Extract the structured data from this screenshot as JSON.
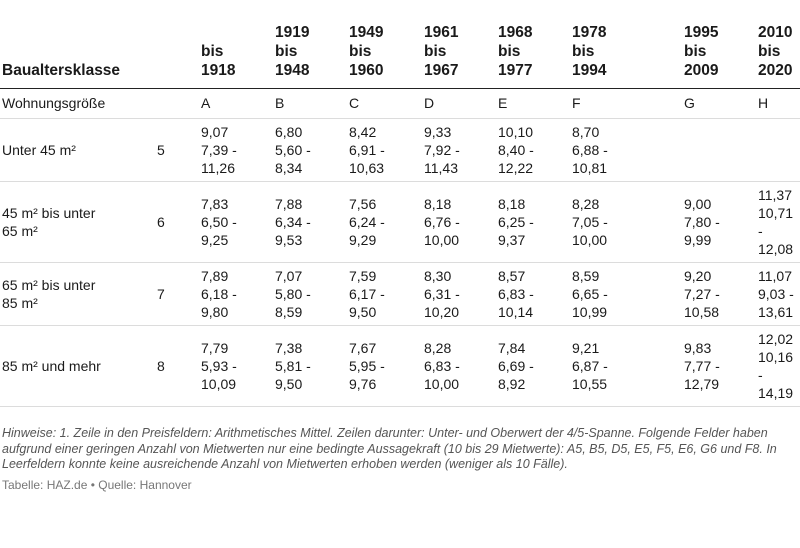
{
  "chart_data": {
    "type": "table",
    "header_label": "Baualtersklasse",
    "columns": [
      {
        "label": "bis\n1918",
        "letter": "A"
      },
      {
        "label": "1919\nbis\n1948",
        "letter": "B"
      },
      {
        "label": "1949\nbis\n1960",
        "letter": "C"
      },
      {
        "label": "1961\nbis\n1967",
        "letter": "D"
      },
      {
        "label": "1968\nbis\n1977",
        "letter": "E"
      },
      {
        "label": "1978\nbis\n1994",
        "letter": "F"
      },
      {
        "label": "1995\nbis\n2009",
        "letter": "G"
      },
      {
        "label": "2010\nbis\n2020",
        "letter": "H"
      }
    ],
    "row_label_header": "Wohnungsgröße",
    "rows": [
      {
        "label": "Unter 45 m²",
        "index": "5",
        "cells": [
          "9,07\n7,39 -\n11,26",
          "6,80\n5,60 -\n8,34",
          "8,42\n6,91 -\n10,63",
          "9,33\n7,92 -\n11,43",
          "10,10\n8,40 -\n12,22",
          "8,70\n6,88 -\n10,81",
          "",
          ""
        ]
      },
      {
        "label": "45 m² bis unter\n65 m²",
        "index": "6",
        "cells": [
          "7,83\n6,50 -\n9,25",
          "7,88\n6,34 -\n9,53",
          "7,56\n6,24 -\n9,29",
          "8,18\n6,76 -\n10,00",
          "8,18\n6,25 -\n9,37",
          "8,28\n7,05 -\n10,00",
          "9,00\n7,80 -\n9,99",
          "11,37\n10,71\n-\n12,08"
        ]
      },
      {
        "label": "65 m² bis unter\n85 m²",
        "index": "7",
        "cells": [
          "7,89\n6,18 -\n9,80",
          "7,07\n5,80 -\n8,59",
          "7,59\n6,17 -\n9,50",
          "8,30\n6,31 -\n10,20",
          "8,57\n6,83 -\n10,14",
          "8,59\n6,65 -\n10,99",
          "9,20\n7,27 -\n10,58",
          "11,07\n9,03 -\n13,61"
        ]
      },
      {
        "label": "85 m² und mehr",
        "index": "8",
        "cells": [
          "7,79\n5,93 -\n10,09",
          "7,38\n5,81 -\n9,50",
          "7,67\n5,95 -\n9,76",
          "8,28\n6,83 -\n10,00",
          "7,84\n6,69 -\n8,92",
          "9,21\n6,87 -\n10,55",
          "9,83\n7,77 -\n12,79",
          "12,02\n10,16\n-\n14,19"
        ]
      }
    ],
    "notes": "Hinweise: 1. Zeile in den Preisfeldern: Arithmetisches Mittel. Zeilen darunter: Unter- und Oberwert der 4/5-Spanne. Folgende Felder haben aufgrund einer geringen Anzahl von Mietwerten nur eine bedingte Aussagekraft (10 bis 29 Mietwerte): A5, B5, D5, E5, F5, E6, G6 und F8. In Leerfeldern konnte keine ausreichende Anzahl von Mietwerten erhoben werden (weniger als 10 Fälle).",
    "source": "Tabelle: HAZ.de • Quelle: Hannover"
  }
}
